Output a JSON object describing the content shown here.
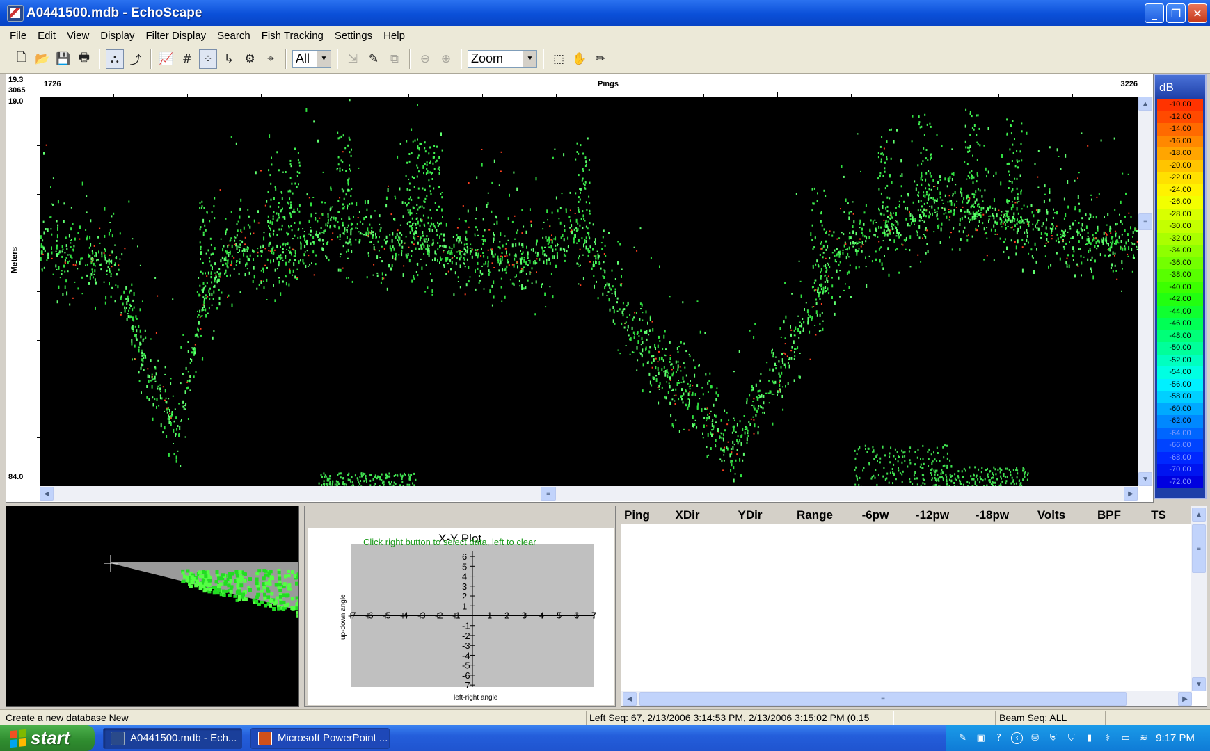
{
  "window": {
    "title": "A0441500.mdb - EchoScape",
    "min": "_",
    "max": "❐",
    "close": "✕"
  },
  "menu": [
    "File",
    "Edit",
    "View",
    "Display",
    "Filter Display",
    "Search",
    "Fish Tracking",
    "Settings",
    "Help"
  ],
  "toolbar": {
    "filter_value": "All",
    "zoom_value": "Zoom"
  },
  "echogram": {
    "top_left_a": "19.3",
    "top_left_b": "3065",
    "ping_start": "1726",
    "ping_end": "3226",
    "ping_label": "Pings",
    "depth_top": "19.0",
    "depth_bottom": "84.0",
    "y_label": "Meters"
  },
  "colorbar": {
    "header": "dB",
    "levels": [
      "-10.00",
      "-12.00",
      "-14.00",
      "-16.00",
      "-18.00",
      "-20.00",
      "-22.00",
      "-24.00",
      "-26.00",
      "-28.00",
      "-30.00",
      "-32.00",
      "-34.00",
      "-36.00",
      "-38.00",
      "-40.00",
      "-42.00",
      "-44.00",
      "-46.00",
      "-48.00",
      "-50.00",
      "-52.00",
      "-54.00",
      "-56.00",
      "-58.00",
      "-60.00",
      "-62.00",
      "-64.00",
      "-66.00",
      "-68.00",
      "-70.00",
      "-72.00"
    ],
    "colors": [
      "#ff3300",
      "#ff4a00",
      "#ff6a00",
      "#ff8800",
      "#ffa500",
      "#ffc400",
      "#ffe000",
      "#fff200",
      "#f2ff00",
      "#d8ff00",
      "#c4ff00",
      "#aaff00",
      "#8eff00",
      "#73ff00",
      "#58ff00",
      "#3cff00",
      "#22ff10",
      "#10ff30",
      "#00ff55",
      "#00ff78",
      "#00ff9a",
      "#00ffc0",
      "#00ffe2",
      "#00f0ff",
      "#00d0ff",
      "#00aaff",
      "#0088ff",
      "#0066ff",
      "#0044ff",
      "#0028ff",
      "#0014f0",
      "#0000e0"
    ]
  },
  "xy_plot": {
    "title": "X-Y Plot",
    "instruction": "Click right button to select data, left to clear",
    "xlabel": "left-right angle",
    "ylabel": "up-down angle",
    "ticks_x": [
      "-7",
      "-6",
      "-5",
      "-4",
      "-3",
      "-2",
      "-1",
      "1",
      "2",
      "3",
      "4",
      "5",
      "6",
      "7"
    ],
    "ticks_y": [
      "6",
      "5",
      "4",
      "3",
      "2",
      "1",
      "-1",
      "-2",
      "-3",
      "-4",
      "-5",
      "-6",
      "-7"
    ]
  },
  "table": {
    "columns": [
      "Ping",
      "XDir",
      "YDir",
      "Range",
      "-6pw",
      "-12pw",
      "-18pw",
      "Volts",
      "BPF",
      "TS"
    ]
  },
  "status": {
    "left": "Create a new database New",
    "seq": "Left Seq: 67, 2/13/2006 3:14:53 PM, 2/13/2006 3:15:02 PM (0.15",
    "beam": "Beam Seq: ALL"
  },
  "taskbar": {
    "start": "start",
    "tasks": [
      "A0441500.mdb - Ech...",
      "Microsoft PowerPoint ..."
    ],
    "clock": "9:17 PM"
  }
}
